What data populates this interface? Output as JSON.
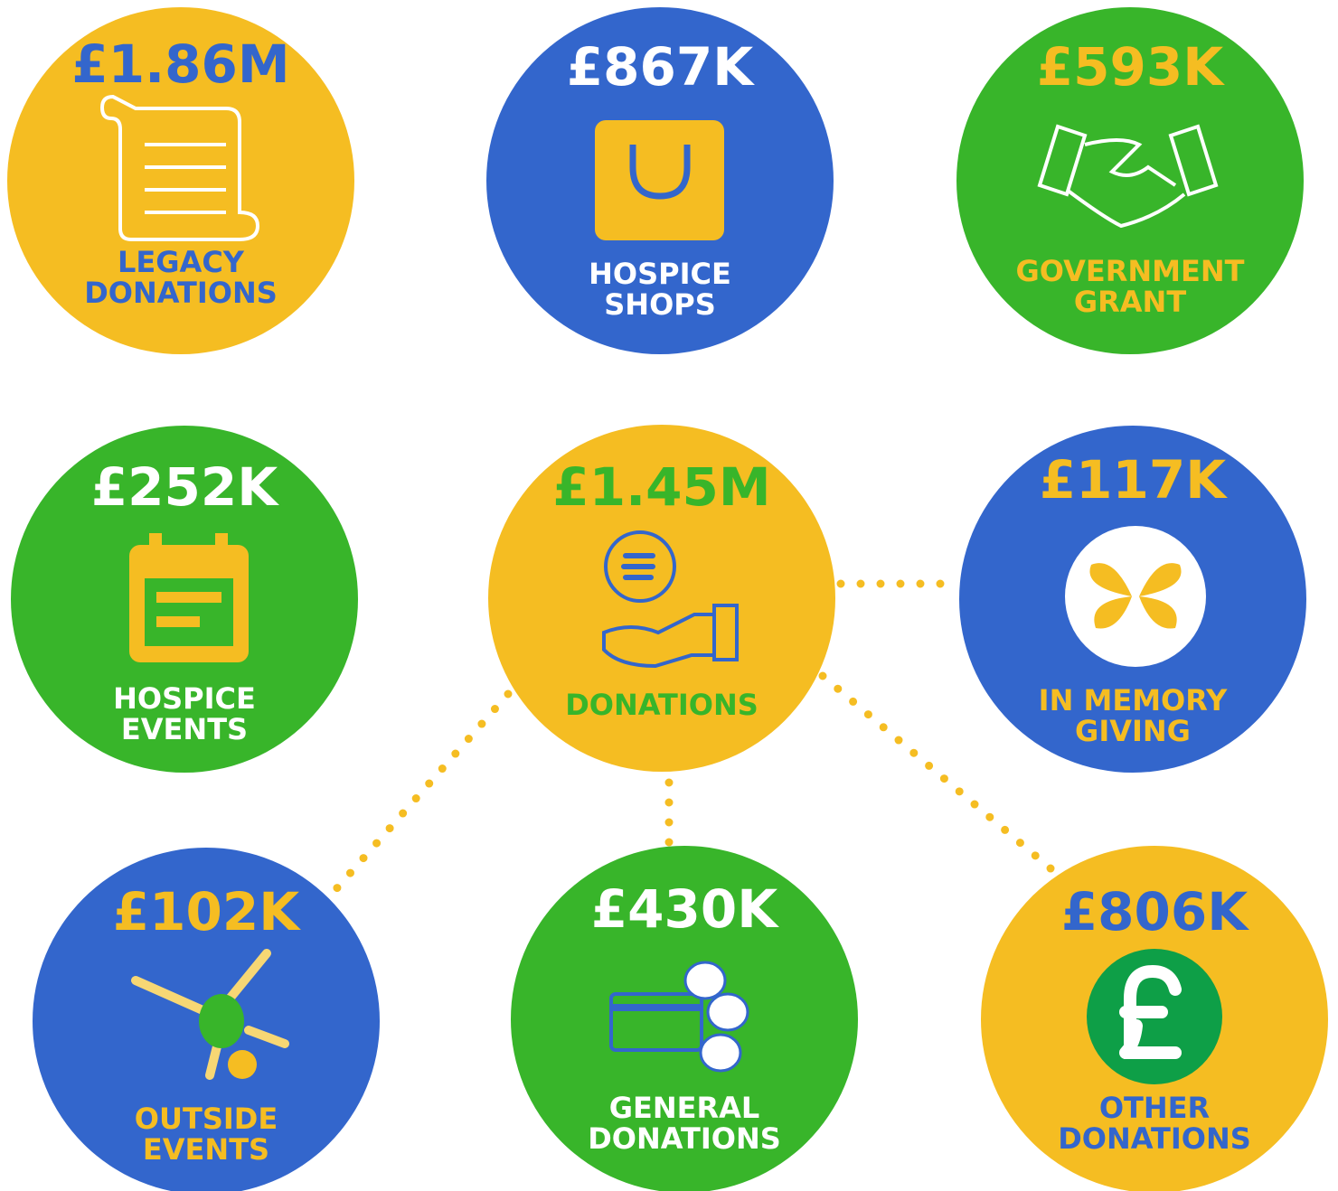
{
  "items": [
    {
      "amount": "£1.86M",
      "label": [
        "LEGACY",
        "DONATIONS"
      ]
    },
    {
      "amount": "£867K",
      "label": [
        "HOSPICE",
        "SHOPS"
      ]
    },
    {
      "amount": "£593K",
      "label": [
        "GOVERNMENT",
        "GRANT"
      ]
    },
    {
      "amount": "£252K",
      "label": [
        "HOSPICE",
        "EVENTS"
      ]
    },
    {
      "amount": "£1.45M",
      "label": [
        "DONATIONS"
      ]
    },
    {
      "amount": "£117K",
      "label": [
        "IN MEMORY",
        "GIVING"
      ]
    },
    {
      "amount": "£102K",
      "label": [
        "OUTSIDE",
        "EVENTS"
      ]
    },
    {
      "amount": "£430K",
      "label": [
        "GENERAL",
        "DONATIONS"
      ]
    },
    {
      "amount": "£806K",
      "label": [
        "OTHER",
        "DONATIONS"
      ]
    }
  ]
}
